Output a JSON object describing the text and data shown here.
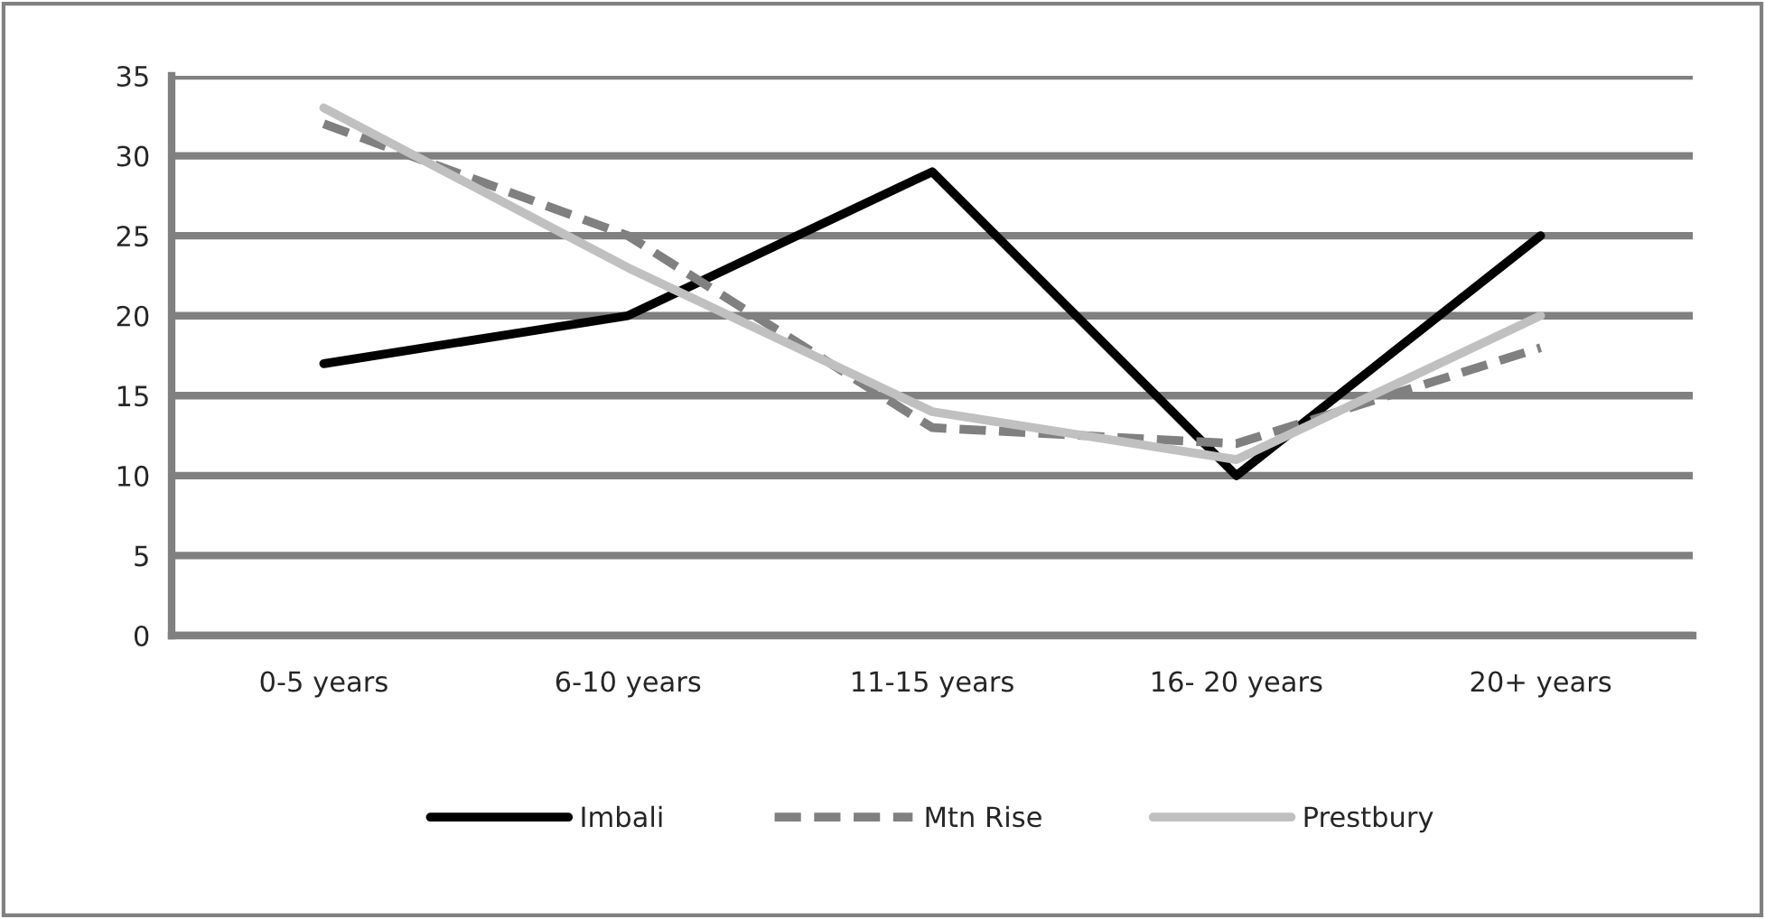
{
  "chart_data": {
    "type": "line",
    "categories": [
      "0-5 years",
      "6-10 years",
      "11-15 years",
      "16- 20 years",
      "20+ years"
    ],
    "series": [
      {
        "name": "Imbali",
        "color": "#000000",
        "line_style": "solid",
        "values": [
          17,
          20,
          29,
          10,
          25
        ]
      },
      {
        "name": "Mtn Rise",
        "color": "#808080",
        "line_style": "dashed",
        "values": [
          32,
          25,
          13,
          12,
          18
        ]
      },
      {
        "name": "Prestbury",
        "color": "#c0c0c0",
        "line_style": "solid",
        "values": [
          33,
          23,
          14,
          11,
          20
        ]
      }
    ],
    "ylim": [
      0,
      35
    ],
    "yticks": [
      0,
      5,
      10,
      15,
      20,
      25,
      30,
      35
    ],
    "grid": "y",
    "legend": "bottom",
    "marker": "none"
  }
}
